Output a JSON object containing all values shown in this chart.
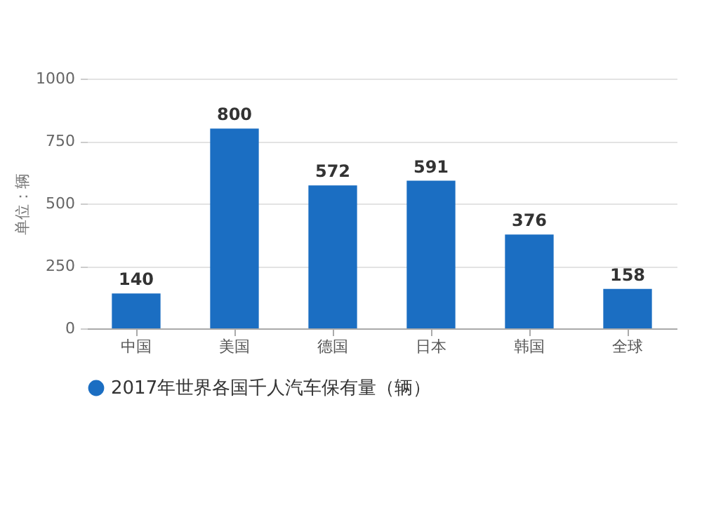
{
  "chart_data": {
    "type": "bar",
    "ylabel": "单位：辆",
    "categories": [
      "中国",
      "美国",
      "德国",
      "日本",
      "韩国",
      "全球"
    ],
    "series": [
      {
        "name": "2017年世界各国千人汽车保有量（辆）",
        "color": "#1b6ec2",
        "values": [
          140,
          800,
          572,
          591,
          376,
          158
        ]
      }
    ],
    "ylim": [
      0,
      1000
    ],
    "yticks": [
      0,
      250,
      500,
      750,
      1000
    ],
    "grid": "y",
    "legend": "bottom",
    "data_labels": true
  }
}
